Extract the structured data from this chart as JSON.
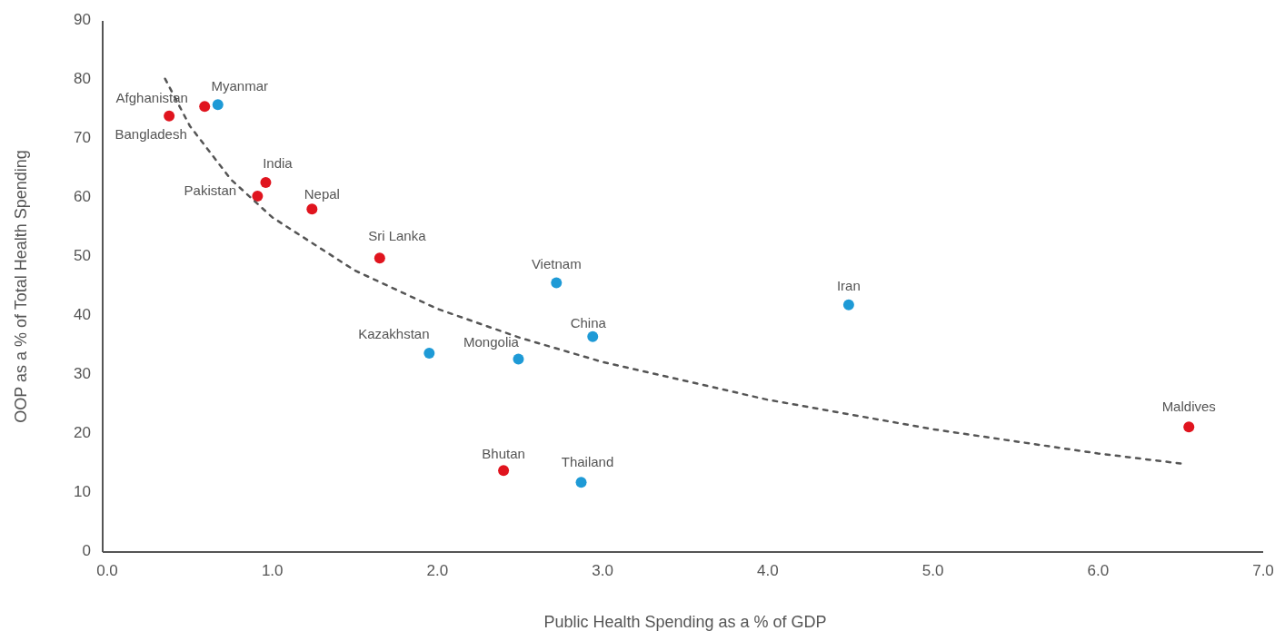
{
  "chart_data": {
    "type": "scatter",
    "xlabel": "Public Health Spending as a % of GDP",
    "ylabel": "OOP as a % of Total Health Spending",
    "xlim": [
      0,
      7
    ],
    "ylim": [
      0,
      90
    ],
    "xticks": [
      {
        "value": 0,
        "label": "0.0"
      },
      {
        "value": 1,
        "label": "1.0"
      },
      {
        "value": 2,
        "label": "2.0"
      },
      {
        "value": 3,
        "label": "3.0"
      },
      {
        "value": 4,
        "label": "4.0"
      },
      {
        "value": 5,
        "label": "5.0"
      },
      {
        "value": 6,
        "label": "6.0"
      },
      {
        "value": 7,
        "label": "7.0"
      }
    ],
    "yticks": [
      0,
      10,
      20,
      30,
      40,
      50,
      60,
      70,
      80,
      90
    ],
    "grid": false,
    "marker": "circle",
    "series": [
      {
        "color": "#e0141e",
        "x": [
          0.375,
          0.59,
          0.96,
          0.91,
          1.24,
          1.65,
          2.4,
          6.55
        ],
        "values": [
          73.9,
          75.5,
          62.6,
          60.3,
          58.1,
          49.8,
          13.8,
          21.2
        ]
      },
      {
        "color": "#1e9ad6",
        "x": [
          0.67,
          2.72,
          4.49,
          2.94,
          1.95,
          2.49,
          2.87
        ],
        "values": [
          75.8,
          45.6,
          41.9,
          36.5,
          33.7,
          32.7,
          11.8
        ]
      },
      {
        "type": "line",
        "line_style": "dashed",
        "marker": "none",
        "color": "#555555",
        "x": [
          0.35,
          0.5,
          0.75,
          1.0,
          1.5,
          2.0,
          2.5,
          3.0,
          4.0,
          5.0,
          6.0,
          6.5
        ],
        "values": [
          80.2,
          72.2,
          63.1,
          56.7,
          47.7,
          41.2,
          36.3,
          32.2,
          25.8,
          20.8,
          16.7,
          15.0
        ]
      }
    ],
    "annotations": [
      {
        "text": "Bangladesh",
        "x": 0.375,
        "y": 73.9
      },
      {
        "text": "Afghanistan",
        "x": 0.59,
        "y": 75.5
      },
      {
        "text": "India",
        "x": 0.96,
        "y": 62.6
      },
      {
        "text": "Pakistan",
        "x": 0.91,
        "y": 60.3
      },
      {
        "text": "Nepal",
        "x": 1.24,
        "y": 58.1
      },
      {
        "text": "Sri Lanka",
        "x": 1.65,
        "y": 49.8
      },
      {
        "text": "Bhutan",
        "x": 2.4,
        "y": 13.8
      },
      {
        "text": "Maldives",
        "x": 6.55,
        "y": 21.2
      },
      {
        "text": "Myanmar",
        "x": 0.67,
        "y": 75.8
      },
      {
        "text": "Vietnam",
        "x": 2.72,
        "y": 45.6
      },
      {
        "text": "Iran",
        "x": 4.49,
        "y": 41.9
      },
      {
        "text": "China",
        "x": 2.94,
        "y": 36.5
      },
      {
        "text": "Kazakhstan",
        "x": 1.95,
        "y": 33.7
      },
      {
        "text": "Mongolia",
        "x": 2.49,
        "y": 32.7
      },
      {
        "text": "Thailand",
        "x": 2.87,
        "y": 11.8
      }
    ]
  }
}
